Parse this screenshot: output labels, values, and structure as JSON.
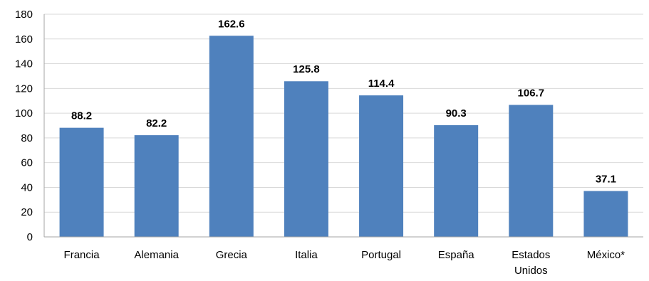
{
  "chart_data": {
    "type": "bar",
    "title": "",
    "xlabel": "",
    "ylabel": "",
    "categories": [
      "Francia",
      "Alemania",
      "Grecia",
      "Italia",
      "Portugal",
      "España",
      "Estados Unidos",
      "México*"
    ],
    "category_lines": [
      [
        "Francia"
      ],
      [
        "Alemania"
      ],
      [
        "Grecia"
      ],
      [
        "Italia"
      ],
      [
        "Portugal"
      ],
      [
        "España"
      ],
      [
        "Estados",
        "Unidos"
      ],
      [
        "México*"
      ]
    ],
    "values": [
      88.2,
      82.2,
      162.6,
      125.8,
      114.4,
      90.3,
      106.7,
      37.1
    ],
    "value_labels": [
      "88.2",
      "82.2",
      "162.6",
      "125.8",
      "114.4",
      "90.3",
      "106.7",
      "37.1"
    ],
    "ylim": [
      0,
      180
    ],
    "yticks": [
      0,
      20,
      40,
      60,
      80,
      100,
      120,
      140,
      160,
      180
    ],
    "grid": true,
    "legend": "none",
    "bar_color": "#4f81bd"
  }
}
